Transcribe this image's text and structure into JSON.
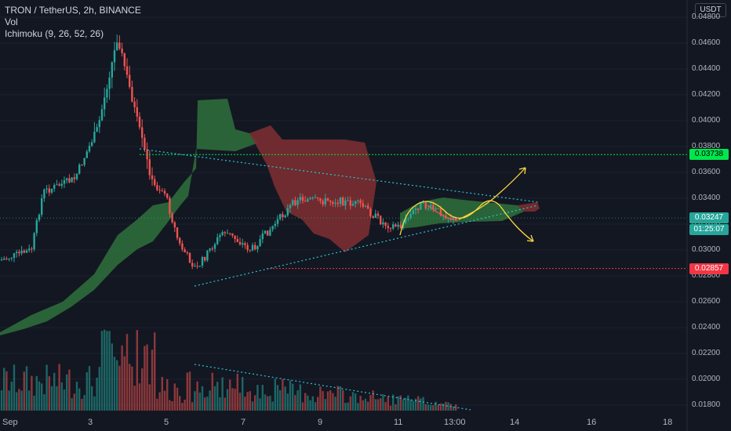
{
  "legend": {
    "symbol": "TRON / TetherUS, 2h, BINANCE",
    "vol": "Vol",
    "ichimoku": "Ichimoku (9, 26, 52, 26)"
  },
  "currency_button": "USDT",
  "y_axis": {
    "ticks": [
      "0.04800",
      "0.04600",
      "0.04400",
      "0.04200",
      "0.04000",
      "0.03800",
      "0.03600",
      "0.03400",
      "0.03200",
      "0.03000",
      "0.02800",
      "0.02600",
      "0.02400",
      "0.02200",
      "0.02000",
      "0.01800"
    ],
    "values": [
      0.048,
      0.046,
      0.044,
      0.042,
      0.04,
      0.038,
      0.036,
      0.034,
      0.032,
      0.03,
      0.028,
      0.026,
      0.024,
      0.022,
      0.02,
      0.018
    ]
  },
  "x_axis": {
    "labels": [
      "Sep",
      "3",
      "5",
      "7",
      "9",
      "11",
      "13:00",
      "14",
      "16",
      "18"
    ]
  },
  "price_tags": {
    "resistance": {
      "label": "0.03738",
      "value": 0.03738,
      "color": "#00e64d"
    },
    "current": {
      "label": "0.03247",
      "value": 0.03247,
      "color": "#26a69a"
    },
    "countdown": {
      "label": "01:25:07",
      "color": "#26a69a"
    },
    "support": {
      "label": "0.02857",
      "value": 0.02857,
      "color": "#f23645"
    }
  },
  "colors": {
    "background": "#131722",
    "up": "#26a69a",
    "down": "#ef5350",
    "cloud_bull": "#2e6b3a",
    "cloud_bear": "#7a2e31",
    "trendline": "#26c6da",
    "projection": "#ffd740",
    "resistance_line": "#00e64d",
    "support_line": "#f23645"
  },
  "chart_data": {
    "type": "candlestick",
    "title": "TRON / TetherUS, 2h, BINANCE",
    "ylim": [
      0.0175,
      0.0485
    ],
    "horizontal_levels": [
      0.03738,
      0.02857
    ],
    "current_price": 0.03247,
    "close_path": [
      {
        "x": "Sep 1",
        "y": 0.0292
      },
      {
        "x": "Sep 2",
        "y": 0.03
      },
      {
        "x": "Sep 2.5",
        "y": 0.0345
      },
      {
        "x": "Sep 3",
        "y": 0.0355
      },
      {
        "x": "Sep 3.5",
        "y": 0.0395
      },
      {
        "x": "Sep 3.8",
        "y": 0.0465
      },
      {
        "x": "Sep 4.3",
        "y": 0.04
      },
      {
        "x": "Sep 4.6",
        "y": 0.035
      },
      {
        "x": "Sep 5",
        "y": 0.0345
      },
      {
        "x": "Sep 5.3",
        "y": 0.0305
      },
      {
        "x": "Sep 5.8",
        "y": 0.0285
      },
      {
        "x": "Sep 6.5",
        "y": 0.0315
      },
      {
        "x": "Sep 7.3",
        "y": 0.03
      },
      {
        "x": "Sep 8",
        "y": 0.032
      },
      {
        "x": "Sep 8.5",
        "y": 0.034
      },
      {
        "x": "Sep 9",
        "y": 0.0338
      },
      {
        "x": "Sep 9.5",
        "y": 0.0338
      },
      {
        "x": "Sep 10",
        "y": 0.0335
      },
      {
        "x": "Sep 10.6",
        "y": 0.032
      },
      {
        "x": "Sep 11",
        "y": 0.0318
      },
      {
        "x": "Sep 11.5",
        "y": 0.0335
      },
      {
        "x": "Sep 12",
        "y": 0.033
      },
      {
        "x": "Sep 12.5",
        "y": 0.0322
      }
    ]
  }
}
